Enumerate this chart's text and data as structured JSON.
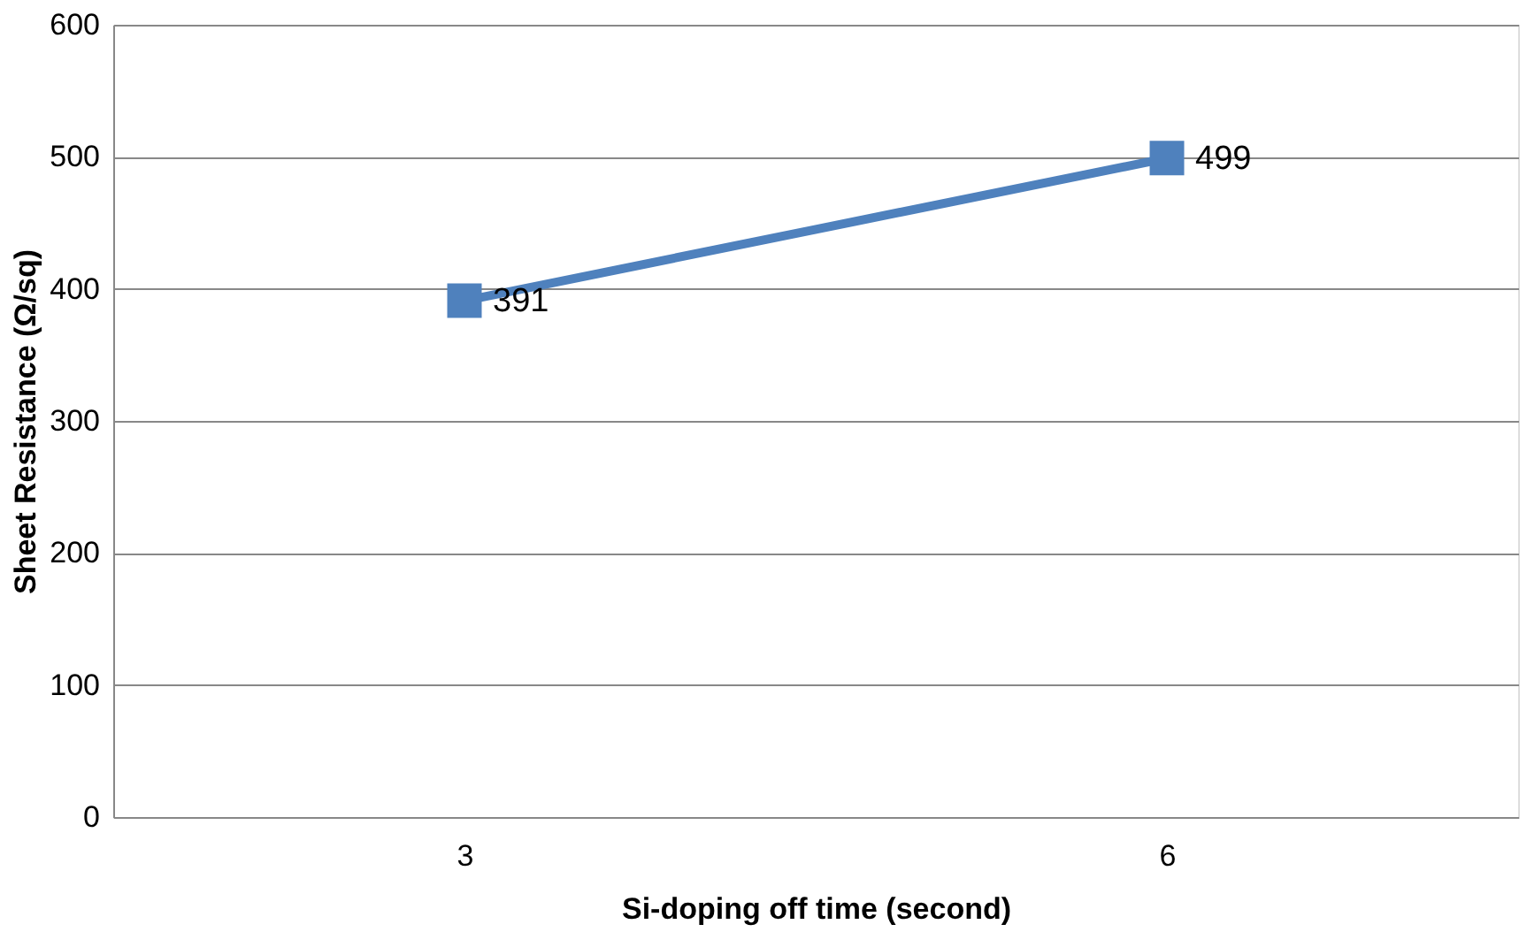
{
  "chart_data": {
    "type": "line",
    "xlabel": "Si-doping off time (second)",
    "ylabel": "Sheet Resistance (Ω/sq)",
    "categories": [
      "3",
      "6"
    ],
    "series": [
      {
        "color": "#4f81bd",
        "values": [
          391,
          499
        ]
      }
    ],
    "ylim": [
      0,
      600
    ],
    "yticks": [
      0,
      100,
      200,
      300,
      400,
      500,
      600
    ],
    "grid": "y",
    "marker": "square",
    "line_style": "solid",
    "data_labels": true,
    "legend": false
  }
}
